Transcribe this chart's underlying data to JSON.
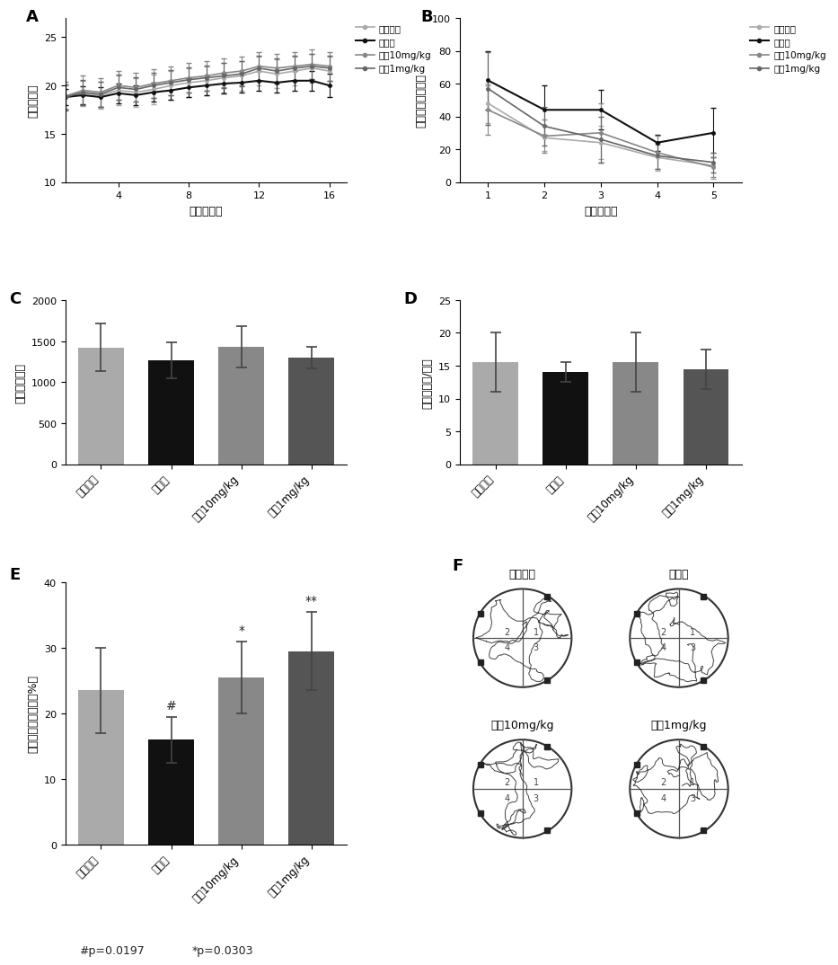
{
  "panel_A": {
    "title": "A",
    "xlabel": "时间（天）",
    "ylabel": "体重（克）",
    "xlim": [
      1,
      17
    ],
    "ylim": [
      10,
      27
    ],
    "xticks": [
      4,
      8,
      12,
      16
    ],
    "yticks": [
      10,
      15,
      20,
      25
    ],
    "x": [
      1,
      2,
      3,
      4,
      5,
      6,
      7,
      8,
      9,
      10,
      11,
      12,
      13,
      14,
      15,
      16
    ],
    "series": {
      "假手术组": {
        "y": [
          18.8,
          19.2,
          19.0,
          19.5,
          19.3,
          19.6,
          20.0,
          20.3,
          20.5,
          20.8,
          21.0,
          21.5,
          21.2,
          21.5,
          21.8,
          21.5
        ],
        "err": [
          1.2,
          1.3,
          1.4,
          1.5,
          1.5,
          1.5,
          1.5,
          1.5,
          1.5,
          1.5,
          1.5,
          1.5,
          1.5,
          1.5,
          1.5,
          1.5
        ],
        "color": "#aaaaaa",
        "lw": 1.2
      },
      "造模组": {
        "y": [
          18.8,
          19.0,
          18.8,
          19.2,
          19.0,
          19.3,
          19.5,
          19.8,
          20.0,
          20.2,
          20.3,
          20.5,
          20.3,
          20.5,
          20.5,
          20.0
        ],
        "err": [
          0.8,
          0.9,
          1.0,
          1.0,
          1.0,
          1.0,
          1.0,
          1.0,
          1.0,
          1.0,
          1.0,
          1.0,
          1.0,
          1.0,
          1.0,
          1.2
        ],
        "color": "#111111",
        "lw": 1.5
      },
      "预给10mg/kg": {
        "y": [
          18.9,
          19.5,
          19.3,
          20.0,
          19.8,
          20.2,
          20.5,
          20.8,
          21.0,
          21.3,
          21.5,
          22.0,
          21.8,
          22.0,
          22.2,
          22.0
        ],
        "err": [
          1.5,
          1.5,
          1.5,
          1.5,
          1.5,
          1.5,
          1.5,
          1.5,
          1.5,
          1.5,
          1.5,
          1.5,
          1.5,
          1.5,
          1.5,
          1.5
        ],
        "color": "#888888",
        "lw": 1.2
      },
      "预给1mg/kg": {
        "y": [
          18.8,
          19.3,
          19.1,
          19.8,
          19.6,
          20.0,
          20.3,
          20.6,
          20.8,
          21.0,
          21.2,
          21.8,
          21.5,
          21.8,
          22.0,
          21.8
        ],
        "err": [
          1.3,
          1.3,
          1.3,
          1.3,
          1.3,
          1.3,
          1.3,
          1.3,
          1.3,
          1.3,
          1.3,
          1.3,
          1.3,
          1.3,
          1.3,
          1.3
        ],
        "color": "#666666",
        "lw": 1.2
      }
    },
    "legend_order": [
      "假手术组",
      "造模组",
      "预给10mg/kg",
      "预给1mg/kg"
    ]
  },
  "panel_B": {
    "title": "B",
    "xlabel": "天数（天）",
    "ylabel": "逃避潜伏期（秒）",
    "xlim": [
      0.5,
      5.5
    ],
    "ylim": [
      0,
      100
    ],
    "xticks": [
      1,
      2,
      3,
      4,
      5
    ],
    "yticks": [
      0,
      20,
      40,
      60,
      80,
      100
    ],
    "x": [
      1,
      2,
      3,
      4,
      5
    ],
    "series": {
      "假手术组": {
        "y": [
          48,
          27,
          24,
          15,
          10
        ],
        "err": [
          12,
          8,
          10,
          8,
          8
        ],
        "color": "#aaaaaa",
        "lw": 1.2
      },
      "造模组": {
        "y": [
          62,
          44,
          44,
          24,
          30
        ],
        "err": [
          18,
          15,
          12,
          5,
          15
        ],
        "color": "#111111",
        "lw": 1.5
      },
      "预给10mg/kg": {
        "y": [
          44,
          28,
          30,
          18,
          9
        ],
        "err": [
          15,
          10,
          18,
          10,
          6
        ],
        "color": "#888888",
        "lw": 1.2
      },
      "预给1mg/kg": {
        "y": [
          57,
          34,
          26,
          16,
          12
        ],
        "err": [
          22,
          12,
          14,
          8,
          6
        ],
        "color": "#666666",
        "lw": 1.2
      }
    },
    "legend_order": [
      "假手术组",
      "造模组",
      "预给10mg/kg",
      "预给1mg/kg"
    ]
  },
  "panel_C": {
    "title": "C",
    "xlabel": "",
    "ylabel": "路程（厘米）",
    "ylim": [
      0,
      2000
    ],
    "yticks": [
      0,
      500,
      1000,
      1500,
      2000
    ],
    "categories": [
      "假手术组",
      "造模组",
      "预给10mg/kg",
      "预给1mg/kg"
    ],
    "values": [
      1420,
      1270,
      1430,
      1300
    ],
    "errors": [
      290,
      220,
      250,
      130
    ],
    "colors": [
      "#aaaaaa",
      "#111111",
      "#888888",
      "#555555"
    ]
  },
  "panel_D": {
    "title": "D",
    "xlabel": "",
    "ylabel": "速度（厘米/秒）",
    "ylim": [
      0,
      25
    ],
    "yticks": [
      0,
      5,
      10,
      15,
      20,
      25
    ],
    "categories": [
      "假手术组",
      "造模组",
      "预给10mg/kg",
      "预给1mg/kg"
    ],
    "values": [
      15.5,
      14.0,
      15.5,
      14.5
    ],
    "errors": [
      4.5,
      1.5,
      4.5,
      3.0
    ],
    "colors": [
      "#aaaaaa",
      "#111111",
      "#888888",
      "#555555"
    ]
  },
  "panel_E": {
    "title": "E",
    "xlabel": "",
    "ylabel": "目标象限活动时间（%）",
    "ylim": [
      0,
      40
    ],
    "yticks": [
      0,
      10,
      20,
      30,
      40
    ],
    "categories": [
      "假手术组",
      "造模组",
      "预给10mg/kg",
      "预给1mg/kg"
    ],
    "values": [
      23.5,
      16.0,
      25.5,
      29.5
    ],
    "errors": [
      6.5,
      3.5,
      5.5,
      6.0
    ],
    "colors": [
      "#aaaaaa",
      "#111111",
      "#888888",
      "#555555"
    ],
    "annotations": {
      "造模组": "#",
      "预给10mg/kg": "*",
      "预给1mg/kg": "**"
    },
    "footnote1": "#p=0.0197",
    "footnote2": "*p=0.0303"
  },
  "panel_F": {
    "title": "F",
    "subtitles": [
      "假手术组",
      "造模组",
      "预给10mg/kg",
      "预给1mg/kg"
    ]
  },
  "background": "#ffffff"
}
